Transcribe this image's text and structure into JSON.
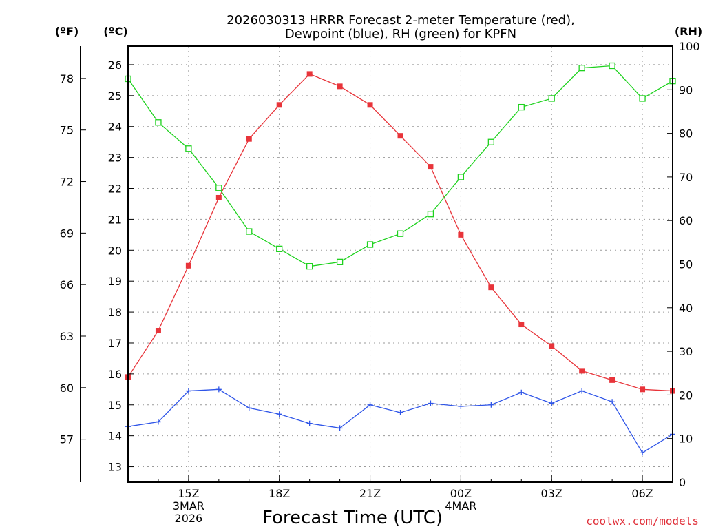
{
  "chart_data": {
    "type": "line",
    "title_line1": "2026030313 HRRR Forecast 2-meter Temperature (red),",
    "title_line2": "Dewpoint (blue), RH (green) for KPFN",
    "xlabel": "Forecast Time (UTC)",
    "credit": "coolwx.com/models",
    "units": {
      "f": "(ºF)",
      "c": "(ºC)",
      "rh": "(RH)"
    },
    "grid": true,
    "x_hours": [
      13,
      14,
      15,
      16,
      17,
      18,
      19,
      20,
      21,
      22,
      23,
      24,
      25,
      26,
      27,
      28,
      29,
      30,
      31
    ],
    "x_ticks": [
      {
        "hour": 15,
        "lines": [
          "15Z",
          "3MAR",
          "2026"
        ]
      },
      {
        "hour": 18,
        "lines": [
          "18Z"
        ]
      },
      {
        "hour": 21,
        "lines": [
          "21Z"
        ]
      },
      {
        "hour": 24,
        "lines": [
          "00Z",
          "4MAR"
        ]
      },
      {
        "hour": 27,
        "lines": [
          "03Z"
        ]
      },
      {
        "hour": 30,
        "lines": [
          "06Z"
        ]
      }
    ],
    "y_celsius": {
      "min": 12.5,
      "max": 26.6,
      "ticks": [
        "13",
        "14",
        "15",
        "16",
        "17",
        "18",
        "19",
        "20",
        "21",
        "22",
        "23",
        "24",
        "25",
        "26"
      ]
    },
    "y_fahrenheit": {
      "ticks": [
        "57",
        "60",
        "63",
        "66",
        "69",
        "72",
        "75",
        "78"
      ]
    },
    "y_rh": {
      "min": 0,
      "max": 100,
      "ticks": [
        "0",
        "10",
        "20",
        "30",
        "40",
        "50",
        "60",
        "70",
        "80",
        "90",
        "100"
      ]
    },
    "series": [
      {
        "name": "2-meter Temperature",
        "axis": "celsius",
        "color": "#e8343a",
        "marker": "filled-square",
        "values": [
          15.9,
          17.4,
          19.5,
          21.7,
          23.6,
          24.7,
          25.7,
          25.3,
          24.7,
          23.7,
          22.7,
          20.5,
          18.8,
          17.6,
          16.9,
          16.1,
          15.8,
          15.5,
          15.45
        ]
      },
      {
        "name": "Dewpoint",
        "axis": "celsius",
        "color": "#2f55e8",
        "marker": "plus",
        "values": [
          14.3,
          14.45,
          15.45,
          15.5,
          14.9,
          14.7,
          14.4,
          14.25,
          15.0,
          14.75,
          15.05,
          14.95,
          15.0,
          15.4,
          15.05,
          15.45,
          15.1,
          13.45,
          14.05
        ]
      },
      {
        "name": "Relative Humidity",
        "axis": "rh",
        "color": "#1ed21e",
        "marker": "open-square",
        "values": [
          92.5,
          82.5,
          76.5,
          67.5,
          57.5,
          53.5,
          49.5,
          50.5,
          54.5,
          57,
          61.5,
          70,
          78,
          86,
          88,
          95,
          95.5,
          88,
          92
        ]
      }
    ]
  }
}
